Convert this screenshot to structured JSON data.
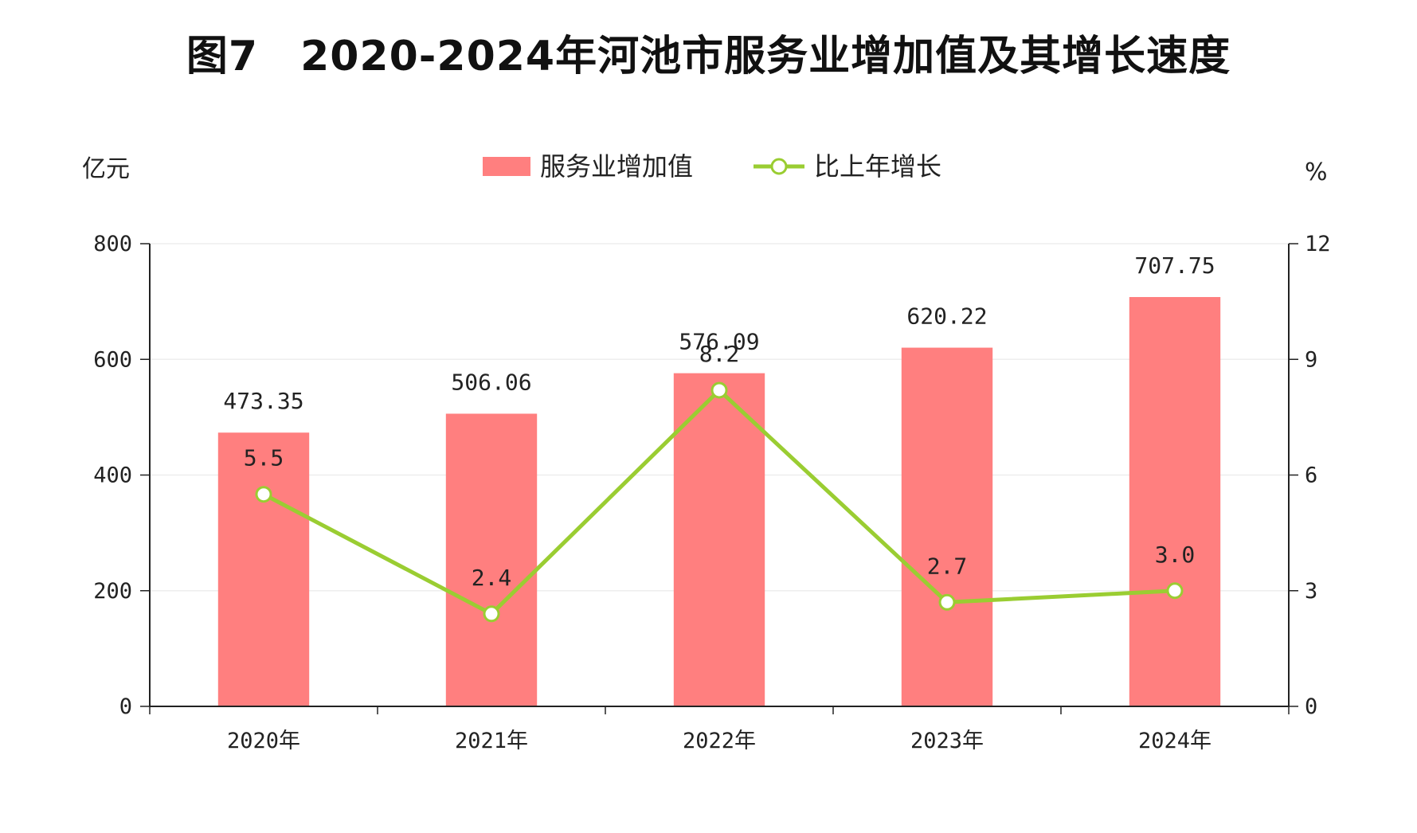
{
  "chart_data": {
    "type": "bar+line",
    "title": "图7　2020-2024年河池市服务业增加值及其增长速度",
    "categories": [
      "2020年",
      "2021年",
      "2022年",
      "2023年",
      "2024年"
    ],
    "series": [
      {
        "name": "服务业增加值",
        "type": "bar",
        "axis": "left",
        "values": [
          473.35,
          506.06,
          576.09,
          620.22,
          707.75
        ],
        "labels": [
          "473.35",
          "506.06",
          "576.09",
          "620.22",
          "707.75"
        ],
        "color": "#ff7f7f"
      },
      {
        "name": "比上年增长",
        "type": "line",
        "axis": "right",
        "values": [
          5.5,
          2.4,
          8.2,
          2.7,
          3.0
        ],
        "labels": [
          "5.5",
          "2.4",
          "8.2",
          "2.7",
          "3.0"
        ],
        "color": "#9acd32"
      }
    ],
    "ylabel_left": "亿元",
    "ylabel_right": "%",
    "ylim_left": [
      0,
      800
    ],
    "ylim_right": [
      0,
      12
    ],
    "yticks_left": [
      "0",
      "200",
      "400",
      "600",
      "800"
    ],
    "yticks_right": [
      "0",
      "3",
      "6",
      "9",
      "12"
    ],
    "grid": true,
    "legend_position": "top-center"
  }
}
